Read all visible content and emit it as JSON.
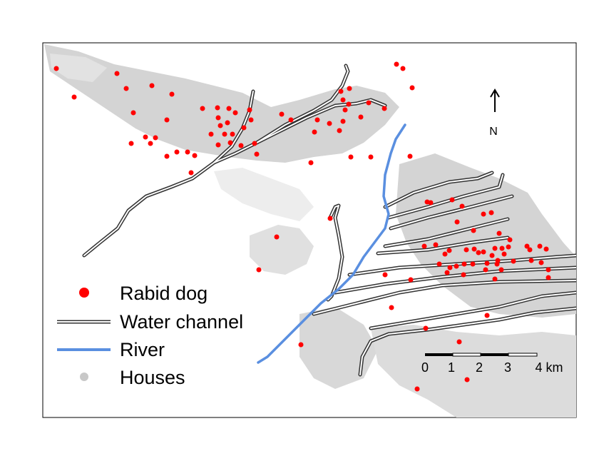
{
  "legend": {
    "items": [
      {
        "label": "Rabid dog",
        "symbol": "red-dot"
      },
      {
        "label": "Water channel",
        "symbol": "double-line"
      },
      {
        "label": "River",
        "symbol": "blue-line"
      },
      {
        "label": "Houses",
        "symbol": "grey-dot"
      }
    ]
  },
  "north_arrow": {
    "label": "N"
  },
  "scale_bar": {
    "ticks": [
      "0",
      "1",
      "2",
      "3",
      "4 km"
    ]
  },
  "colors": {
    "rabid_dog": "#ff0000",
    "water_channel_outer": "#333333",
    "water_channel_inner": "#ffffff",
    "river": "#5a8fe0",
    "houses": "#d0d0d0",
    "frame": "#000000"
  }
}
